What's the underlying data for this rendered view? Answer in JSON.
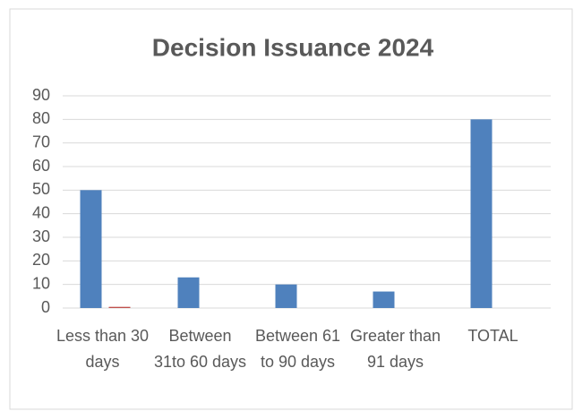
{
  "chart_data": {
    "type": "bar",
    "title": "Decision Issuance 2024",
    "categories": [
      "Less than 30 days",
      "Between 31to 60 days",
      "Between 61 to 90 days",
      "Greater than 91 days",
      "TOTAL"
    ],
    "series": [
      {
        "color": "#4f81bd",
        "values": [
          50,
          13,
          10,
          7,
          80
        ]
      },
      {
        "color": "#c0504d",
        "values": [
          0.5,
          0,
          0,
          0,
          0
        ]
      }
    ],
    "ylim": [
      0,
      90
    ],
    "yticks": [
      0,
      10,
      20,
      30,
      40,
      50,
      60,
      70,
      80,
      90
    ],
    "grid": true
  }
}
